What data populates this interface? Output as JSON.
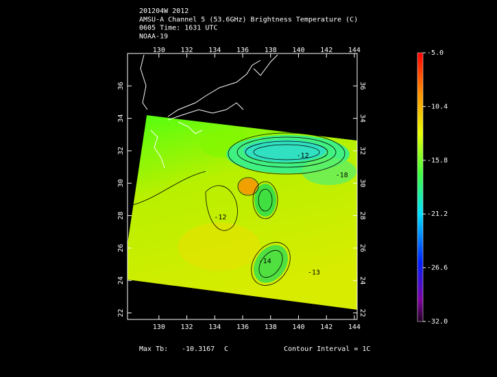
{
  "header": {
    "lines": [
      "201204W 2012",
      "AMSU-A Channel 5 (53.6GHz) Brightness Temperature (C)",
      "0605 Time: 1631 UTC",
      "NOAA-19"
    ]
  },
  "map": {
    "lonlim": [
      127.75,
      144.2
    ],
    "latlim": [
      21.6,
      38
    ],
    "lon_ticks": [
      130,
      132,
      134,
      136,
      138,
      140,
      142,
      144
    ],
    "lat_ticks": [
      22,
      24,
      26,
      28,
      30,
      32,
      34,
      36
    ],
    "contour_labels": [
      {
        "text": "-12",
        "lon": 134.4,
        "lat": 27.9
      },
      {
        "text": "-13",
        "lon": 141.1,
        "lat": 24.5
      },
      {
        "text": "-18",
        "lon": 143.1,
        "lat": 30.5
      },
      {
        "text": "-14",
        "lon": 137.6,
        "lat": 25.2
      },
      {
        "text": "-12",
        "lon": 140.3,
        "lat": 31.7
      }
    ]
  },
  "colorbar": {
    "lim": [
      -32,
      -5
    ],
    "ticks": [
      {
        "value": -5,
        "label": "-5.0"
      },
      -10.4,
      -15.8,
      -21.2,
      -26.6,
      {
        "value": -32,
        "label": "-32.0"
      }
    ]
  },
  "footer": {
    "max_label": "Max Tb:",
    "max_value": -10.3167,
    "unit": "C",
    "contour_interval": "Contour Interval = 1C"
  }
}
